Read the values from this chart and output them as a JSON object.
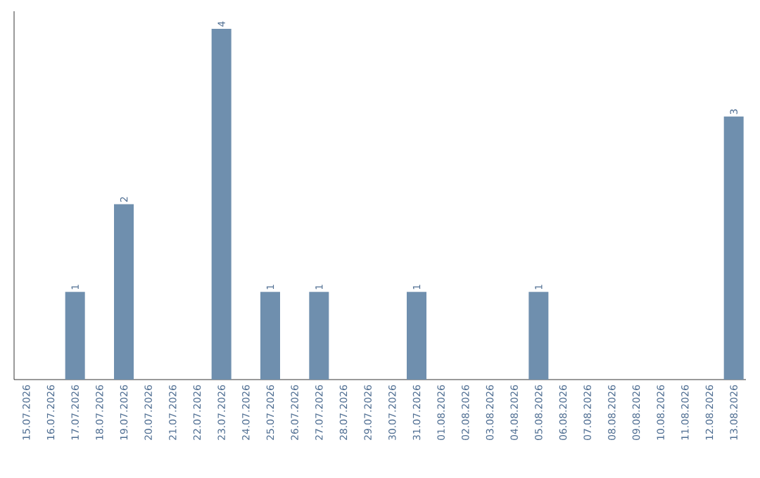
{
  "chart_data": {
    "type": "bar",
    "categories": [
      "15.07.2026",
      "16.07.2026",
      "17.07.2026",
      "18.07.2026",
      "19.07.2026",
      "20.07.2026",
      "21.07.2026",
      "22.07.2026",
      "23.07.2026",
      "24.07.2026",
      "25.07.2026",
      "26.07.2026",
      "27.07.2026",
      "28.07.2026",
      "29.07.2026",
      "30.07.2026",
      "31.07.2026",
      "01.08.2026",
      "02.08.2026",
      "03.08.2026",
      "04.08.2026",
      "05.08.2026",
      "06.08.2026",
      "07.08.2026",
      "08.08.2026",
      "09.08.2026",
      "10.08.2026",
      "11.08.2026",
      "12.08.2026",
      "13.08.2026"
    ],
    "values": [
      0,
      0,
      1,
      0,
      2,
      0,
      0,
      0,
      4,
      0,
      1,
      0,
      1,
      0,
      0,
      0,
      1,
      0,
      0,
      0,
      0,
      1,
      0,
      0,
      0,
      0,
      0,
      0,
      0,
      3
    ],
    "value_labels": [
      null,
      null,
      "1",
      null,
      "2",
      null,
      null,
      null,
      "4",
      null,
      "1",
      null,
      "1",
      null,
      null,
      null,
      "1",
      null,
      null,
      null,
      null,
      "1",
      null,
      null,
      null,
      null,
      null,
      null,
      null,
      "3"
    ],
    "color": "#6f8fae"
  }
}
